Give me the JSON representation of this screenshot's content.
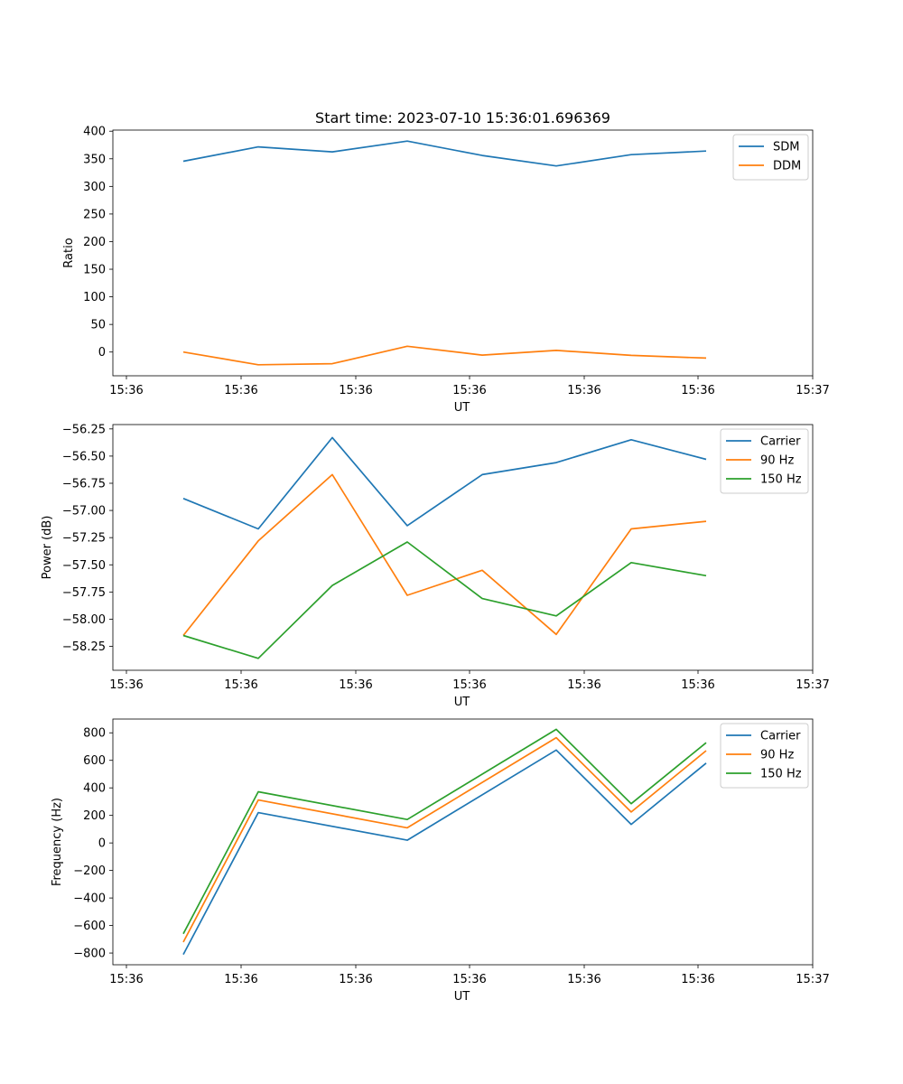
{
  "chart_data": [
    {
      "type": "line",
      "title": "Start time: 2023-07-10 15:36:01.696369",
      "xlabel": "UT",
      "ylabel": "Ratio",
      "x_tick_labels": [
        "15:36",
        "15:36",
        "15:36",
        "15:36",
        "15:36",
        "15:36",
        "15:36"
      ],
      "x_end_label": "15:37",
      "ylim": [
        -43,
        402
      ],
      "y_ticks": [
        0,
        50,
        100,
        150,
        200,
        250,
        300,
        350,
        400
      ],
      "legend_position": "upper-right",
      "series": [
        {
          "name": "SDM",
          "color": "#1f77b4",
          "values": [
            345.5,
            371.5,
            362.5,
            382.0,
            356.0,
            337.0,
            357.5,
            364.0
          ]
        },
        {
          "name": "DDM",
          "color": "#ff7f0e",
          "values": [
            0.0,
            -23.0,
            -21.0,
            10.5,
            -5.5,
            3.0,
            -6.0,
            -11.0
          ]
        }
      ]
    },
    {
      "type": "line",
      "title": "",
      "xlabel": "UT",
      "ylabel": "Power (dB)",
      "x_tick_labels": [
        "15:36",
        "15:36",
        "15:36",
        "15:36",
        "15:36",
        "15:36",
        "15:36"
      ],
      "x_end_label": "15:37",
      "ylim": [
        -58.47,
        -56.21
      ],
      "y_ticks": [
        -58.25,
        -58.0,
        -57.75,
        -57.5,
        -57.25,
        -57.0,
        -56.75,
        -56.5,
        -56.25
      ],
      "y_tick_labels": [
        "−58.25",
        "−58.00",
        "−57.75",
        "−57.50",
        "−57.25",
        "−57.00",
        "−56.75",
        "−56.50",
        "−56.25"
      ],
      "legend_position": "upper-right",
      "series": [
        {
          "name": "Carrier",
          "color": "#1f77b4",
          "values": [
            -56.89,
            -57.17,
            -56.33,
            -57.14,
            -56.67,
            -56.56,
            -56.35,
            -56.53
          ]
        },
        {
          "name": "90 Hz",
          "color": "#ff7f0e",
          "values": [
            -58.15,
            -57.28,
            -56.67,
            -57.78,
            -57.55,
            -58.14,
            -57.17,
            -57.1
          ]
        },
        {
          "name": "150 Hz",
          "color": "#2ca02c",
          "values": [
            -58.15,
            -58.36,
            -57.69,
            -57.29,
            -57.81,
            -57.97,
            -57.48,
            -57.6
          ]
        }
      ]
    },
    {
      "type": "line",
      "title": "",
      "xlabel": "UT",
      "ylabel": "Frequency (Hz)",
      "x_tick_labels": [
        "15:36",
        "15:36",
        "15:36",
        "15:36",
        "15:36",
        "15:36",
        "15:36"
      ],
      "x_end_label": "15:37",
      "ylim": [
        -885,
        900
      ],
      "y_ticks": [
        -800,
        -600,
        -400,
        -200,
        0,
        200,
        400,
        600,
        800
      ],
      "y_tick_labels": [
        "−800",
        "−600",
        "−400",
        "−200",
        "0",
        "200",
        "400",
        "600",
        "800"
      ],
      "legend_position": "upper-right",
      "series": [
        {
          "name": "Carrier",
          "color": "#1f77b4",
          "x_index": [
            0,
            1,
            3,
            5,
            6,
            7
          ],
          "values": [
            -810,
            220,
            20,
            675,
            135,
            580
          ]
        },
        {
          "name": "90 Hz",
          "color": "#ff7f0e",
          "x_index": [
            0,
            1,
            3,
            5,
            6,
            7
          ],
          "values": [
            -720,
            312,
            110,
            765,
            225,
            670
          ]
        },
        {
          "name": "150 Hz",
          "color": "#2ca02c",
          "x_index": [
            0,
            1,
            3,
            5,
            6,
            7
          ],
          "values": [
            -660,
            372,
            170,
            825,
            285,
            728
          ]
        }
      ]
    }
  ]
}
